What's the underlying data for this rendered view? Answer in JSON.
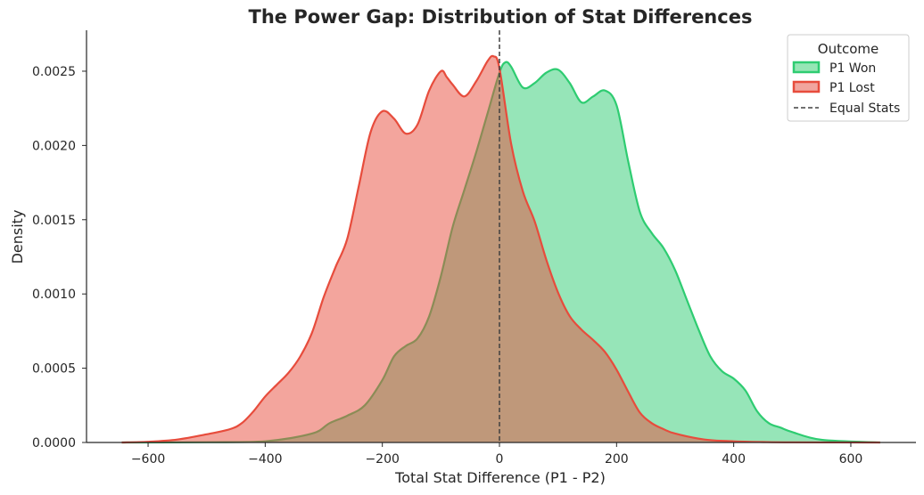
{
  "chart_data": {
    "type": "area",
    "title": "The Power Gap: Distribution of Stat Differences",
    "xlabel": "Total Stat Difference (P1 - P2)",
    "ylabel": "Density",
    "xlim": [
      -715,
      715
    ],
    "ylim": [
      0,
      0.00273
    ],
    "xticks": [
      -600,
      -400,
      -200,
      0,
      200,
      400,
      600
    ],
    "xtick_labels": [
      "−600",
      "−400",
      "−200",
      "0",
      "200",
      "400",
      "600"
    ],
    "yticks": [
      0,
      0.0005,
      0.001,
      0.0015,
      0.002,
      0.0025
    ],
    "ytick_labels": [
      "0.0000",
      "0.0005",
      "0.0010",
      "0.0015",
      "0.0020",
      "0.0025"
    ],
    "grid": false,
    "reference_line": {
      "x": 0,
      "label": "Equal Stats",
      "color": "#404040",
      "style": "dashed"
    },
    "legend": {
      "title": "Outcome",
      "position": "top-right",
      "entries": [
        "P1 Won",
        "P1 Lost",
        "Equal Stats"
      ]
    },
    "series": [
      {
        "name": "P1 Won",
        "color": "#2ecc71",
        "fill": "#96e6b5",
        "x": [
          -645,
          -500,
          -400,
          -320,
          -290,
          -260,
          -230,
          -200,
          -180,
          -160,
          -140,
          -120,
          -100,
          -80,
          -60,
          -40,
          -20,
          0,
          10,
          20,
          40,
          60,
          80,
          100,
          120,
          140,
          160,
          180,
          200,
          220,
          240,
          260,
          280,
          300,
          320,
          340,
          360,
          380,
          400,
          420,
          440,
          460,
          480,
          500,
          550,
          650
        ],
        "y": [
          0,
          2e-06,
          8e-06,
          6e-05,
          0.00013,
          0.00018,
          0.00025,
          0.00042,
          0.00058,
          0.00065,
          0.0007,
          0.00085,
          0.00112,
          0.00145,
          0.0017,
          0.00195,
          0.00222,
          0.00249,
          0.00256,
          0.00253,
          0.00239,
          0.00242,
          0.00249,
          0.00251,
          0.00242,
          0.00229,
          0.00233,
          0.00237,
          0.00227,
          0.00189,
          0.00155,
          0.00141,
          0.00131,
          0.00116,
          0.00096,
          0.00076,
          0.00058,
          0.00048,
          0.00043,
          0.00035,
          0.00021,
          0.00013,
          0.0001,
          7e-05,
          1.8e-05,
          0
        ]
      },
      {
        "name": "P1 Lost",
        "color": "#e74c3c",
        "fill": "#f1a59e",
        "x": [
          -645,
          -600,
          -550,
          -500,
          -460,
          -440,
          -420,
          -400,
          -380,
          -360,
          -340,
          -320,
          -300,
          -280,
          -260,
          -240,
          -220,
          -200,
          -180,
          -160,
          -140,
          -120,
          -100,
          -90,
          -80,
          -60,
          -40,
          -20,
          -10,
          0,
          20,
          40,
          60,
          80,
          100,
          120,
          140,
          160,
          180,
          200,
          220,
          240,
          260,
          280,
          300,
          350,
          400,
          450,
          500,
          650
        ],
        "y": [
          0,
          5e-06,
          2e-05,
          5.5e-05,
          9e-05,
          0.00013,
          0.00021,
          0.00031,
          0.00039,
          0.00047,
          0.00058,
          0.00074,
          0.00098,
          0.00118,
          0.00137,
          0.00173,
          0.00209,
          0.00223,
          0.00218,
          0.00208,
          0.00214,
          0.00237,
          0.0025,
          0.00246,
          0.00241,
          0.00233,
          0.00243,
          0.00257,
          0.0026,
          0.00252,
          0.00201,
          0.00169,
          0.00149,
          0.00123,
          0.00101,
          0.00085,
          0.00076,
          0.00069,
          0.00061,
          0.00049,
          0.00034,
          0.0002,
          0.00013,
          9e-05,
          6e-05,
          2e-05,
          8e-06,
          3e-06,
          1e-06,
          0
        ]
      }
    ]
  }
}
